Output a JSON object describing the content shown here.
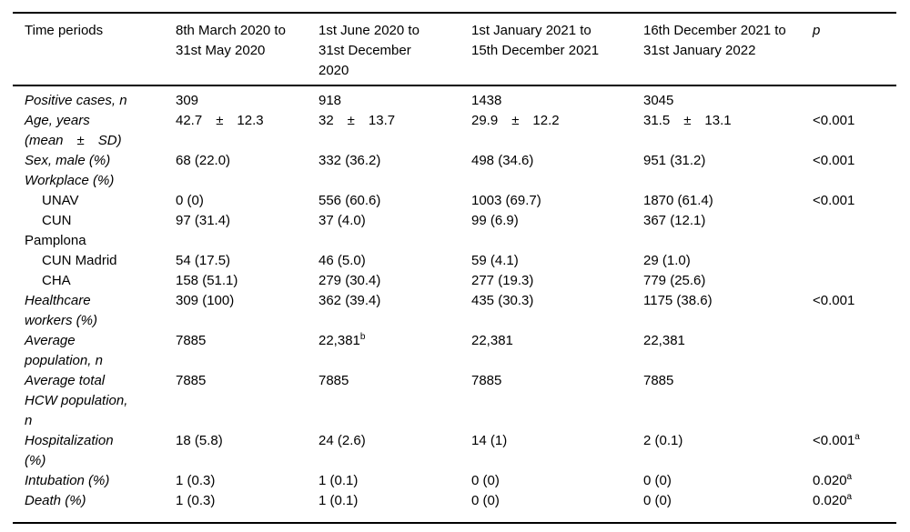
{
  "table": {
    "columns": [
      {
        "label": "Time periods"
      },
      {
        "label": "8th March 2020 to\n31st May 2020"
      },
      {
        "label": "1st June 2020 to\n31st December\n2020"
      },
      {
        "label": "1st January 2021 to\n15th December 2021"
      },
      {
        "label": "16th December 2021 to\n31st January 2022"
      },
      {
        "label": "p"
      }
    ],
    "rows": [
      {
        "variant": "main",
        "label": "Positive cases, n",
        "cells": [
          "309",
          "918",
          "1438",
          "3045",
          ""
        ]
      },
      {
        "variant": "main",
        "label": "Age, years\n(mean  ±  SD)",
        "cells": [
          "42.7 ± 12.3",
          "32 ± 13.7",
          "29.9 ± 12.2",
          "31.5 ± 13.1",
          "<0.001"
        ]
      },
      {
        "variant": "main",
        "label": "Sex, male (%)",
        "cells": [
          "68 (22.0)",
          "332 (36.2)",
          "498 (34.6)",
          "951 (31.2)",
          "<0.001"
        ]
      },
      {
        "variant": "main",
        "label": "Workplace (%)",
        "cells": [
          "",
          "",
          "",
          "",
          ""
        ]
      },
      {
        "variant": "sub",
        "label": "UNAV",
        "cells": [
          "0 (0)",
          "556 (60.6)",
          "1003 (69.7)",
          "1870 (61.4)",
          "<0.001"
        ]
      },
      {
        "variant": "sub",
        "label": "CUN\nPamplona",
        "cells": [
          "97 (31.4)",
          "37 (4.0)",
          "99 (6.9)",
          "367 (12.1)",
          ""
        ]
      },
      {
        "variant": "sub",
        "label": "CUN Madrid",
        "cells": [
          "54 (17.5)",
          "46 (5.0)",
          "59 (4.1)",
          "29 (1.0)",
          ""
        ]
      },
      {
        "variant": "sub",
        "label": "CHA",
        "cells": [
          "158 (51.1)",
          "279 (30.4)",
          "277 (19.3)",
          "779 (25.6)",
          ""
        ]
      },
      {
        "variant": "main",
        "label": "Healthcare\nworkers (%)",
        "cells": [
          "309 (100)",
          "362 (39.4)",
          "435 (30.3)",
          "1175 (38.6)",
          "<0.001"
        ]
      },
      {
        "variant": "main",
        "label": "Average\npopulation, n",
        "cells": [
          "7885",
          {
            "text": "22,381",
            "sup": "b"
          },
          "22,381",
          "22,381",
          ""
        ]
      },
      {
        "variant": "main",
        "label": "Average total\nHCW population,\nn",
        "cells": [
          "7885",
          "7885",
          "7885",
          "7885",
          ""
        ]
      },
      {
        "variant": "main",
        "label": "Hospitalization\n(%)",
        "cells": [
          "18 (5.8)",
          "24 (2.6)",
          "14 (1)",
          "2 (0.1)",
          {
            "text": "<0.001",
            "sup": "a"
          }
        ]
      },
      {
        "variant": "main",
        "label": "Intubation (%)",
        "cells": [
          "1 (0.3)",
          "1 (0.1)",
          "0 (0)",
          "0 (0)",
          {
            "text": "0.020",
            "sup": "a"
          }
        ]
      },
      {
        "variant": "main",
        "label": "Death (%)",
        "cells": [
          "1 (0.3)",
          "1 (0.1)",
          "0 (0)",
          "0 (0)",
          {
            "text": "0.020",
            "sup": "a"
          }
        ]
      }
    ]
  }
}
